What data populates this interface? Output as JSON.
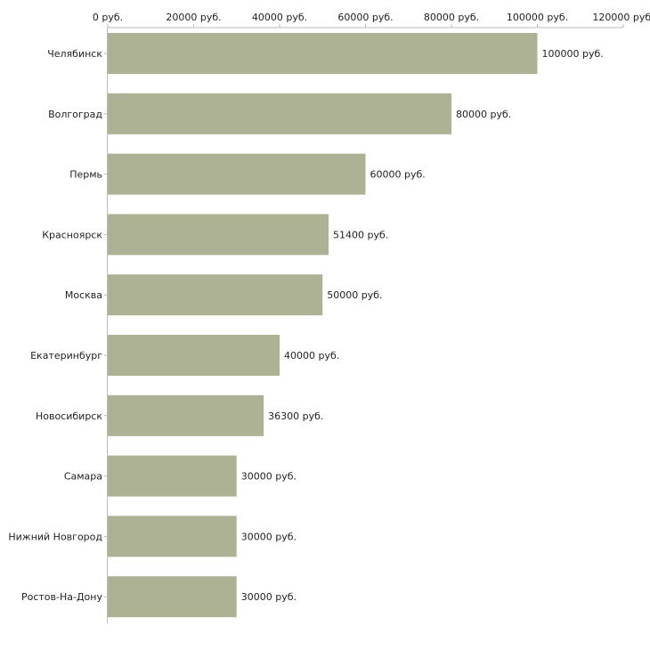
{
  "chart_data": {
    "type": "bar",
    "orientation": "horizontal",
    "title": "",
    "xlabel": "",
    "ylabel": "",
    "categories": [
      "Челябинск",
      "Волгоград",
      "Пермь",
      "Красноярск",
      "Москва",
      "Екатеринбург",
      "Новосибирск",
      "Самара",
      "Нижний Новгород",
      "Ростов-На-Дону"
    ],
    "values": [
      100000,
      80000,
      60000,
      51400,
      50000,
      40000,
      36300,
      30000,
      30000,
      30000
    ],
    "value_labels": [
      "100000 руб.",
      "80000 руб.",
      "60000 руб.",
      "51400 руб.",
      "50000 руб.",
      "40000 руб.",
      "36300 руб.",
      "30000 руб.",
      "30000 руб.",
      "30000 руб."
    ],
    "xlim": [
      0,
      120000
    ],
    "x_ticks": [
      0,
      20000,
      40000,
      60000,
      80000,
      100000,
      120000
    ],
    "x_tick_labels": [
      "0 руб.",
      "20000 руб.",
      "40000 руб.",
      "60000 руб.",
      "80000 руб.",
      "100000 руб.",
      "120000 руб."
    ],
    "axis_position": "top",
    "grid": false,
    "legend": "none",
    "colors": {
      "bar": "#adb295",
      "axis": "#bbbbbb",
      "text": "#222222"
    }
  }
}
